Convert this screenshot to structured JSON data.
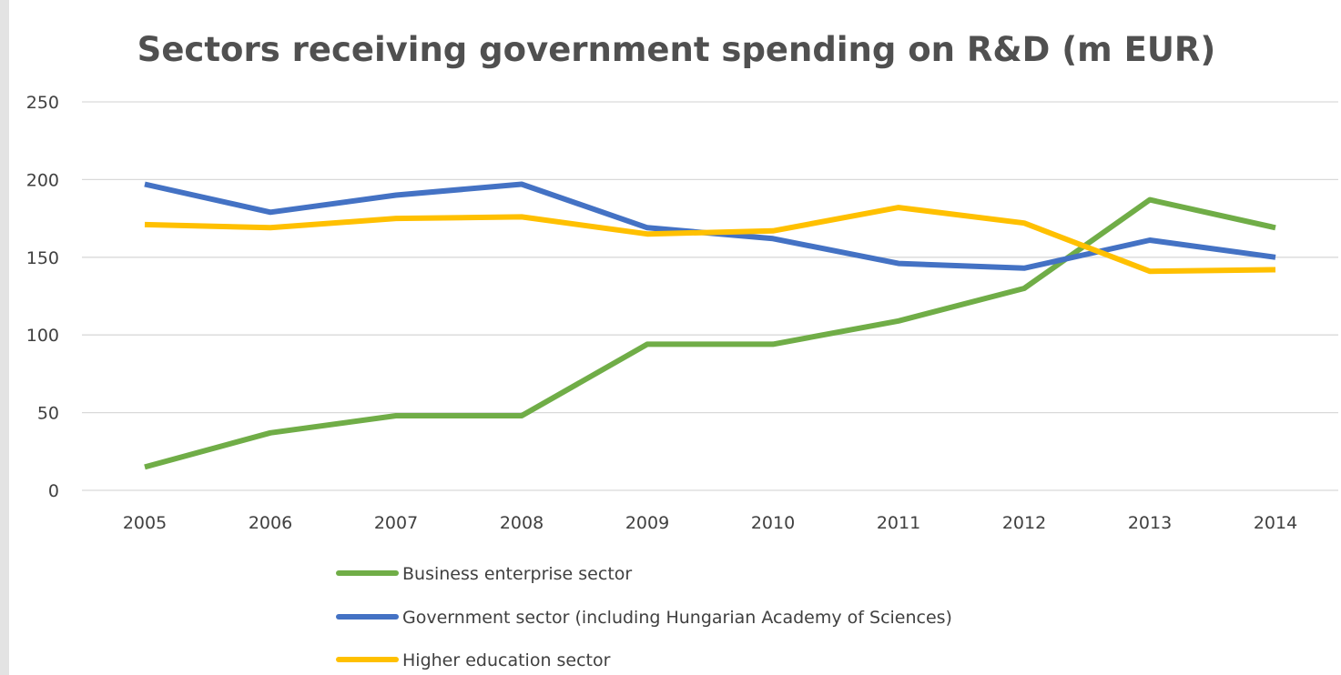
{
  "chart_data": {
    "type": "line",
    "title": "Sectors receiving government spending on R&D (m EUR)",
    "xlabel": "",
    "ylabel": "",
    "categories": [
      "2005",
      "2006",
      "2007",
      "2008",
      "2009",
      "2010",
      "2011",
      "2012",
      "2013",
      "2014"
    ],
    "ylim": [
      0,
      250
    ],
    "yticks": [
      0,
      50,
      100,
      150,
      200,
      250
    ],
    "grid": "horizontal",
    "legend_position": "bottom",
    "series": [
      {
        "name": "Business enterprise sector",
        "color": "#70ad47",
        "values": [
          15,
          37,
          48,
          48,
          94,
          94,
          109,
          130,
          187,
          169
        ]
      },
      {
        "name": "Government sector (including Hungarian Academy of Sciences)",
        "color": "#4472c4",
        "values": [
          197,
          179,
          190,
          197,
          169,
          162,
          146,
          143,
          161,
          150
        ]
      },
      {
        "name": "Higher education sector",
        "color": "#ffc000",
        "values": [
          171,
          169,
          175,
          176,
          165,
          167,
          182,
          172,
          141,
          142
        ]
      }
    ]
  }
}
